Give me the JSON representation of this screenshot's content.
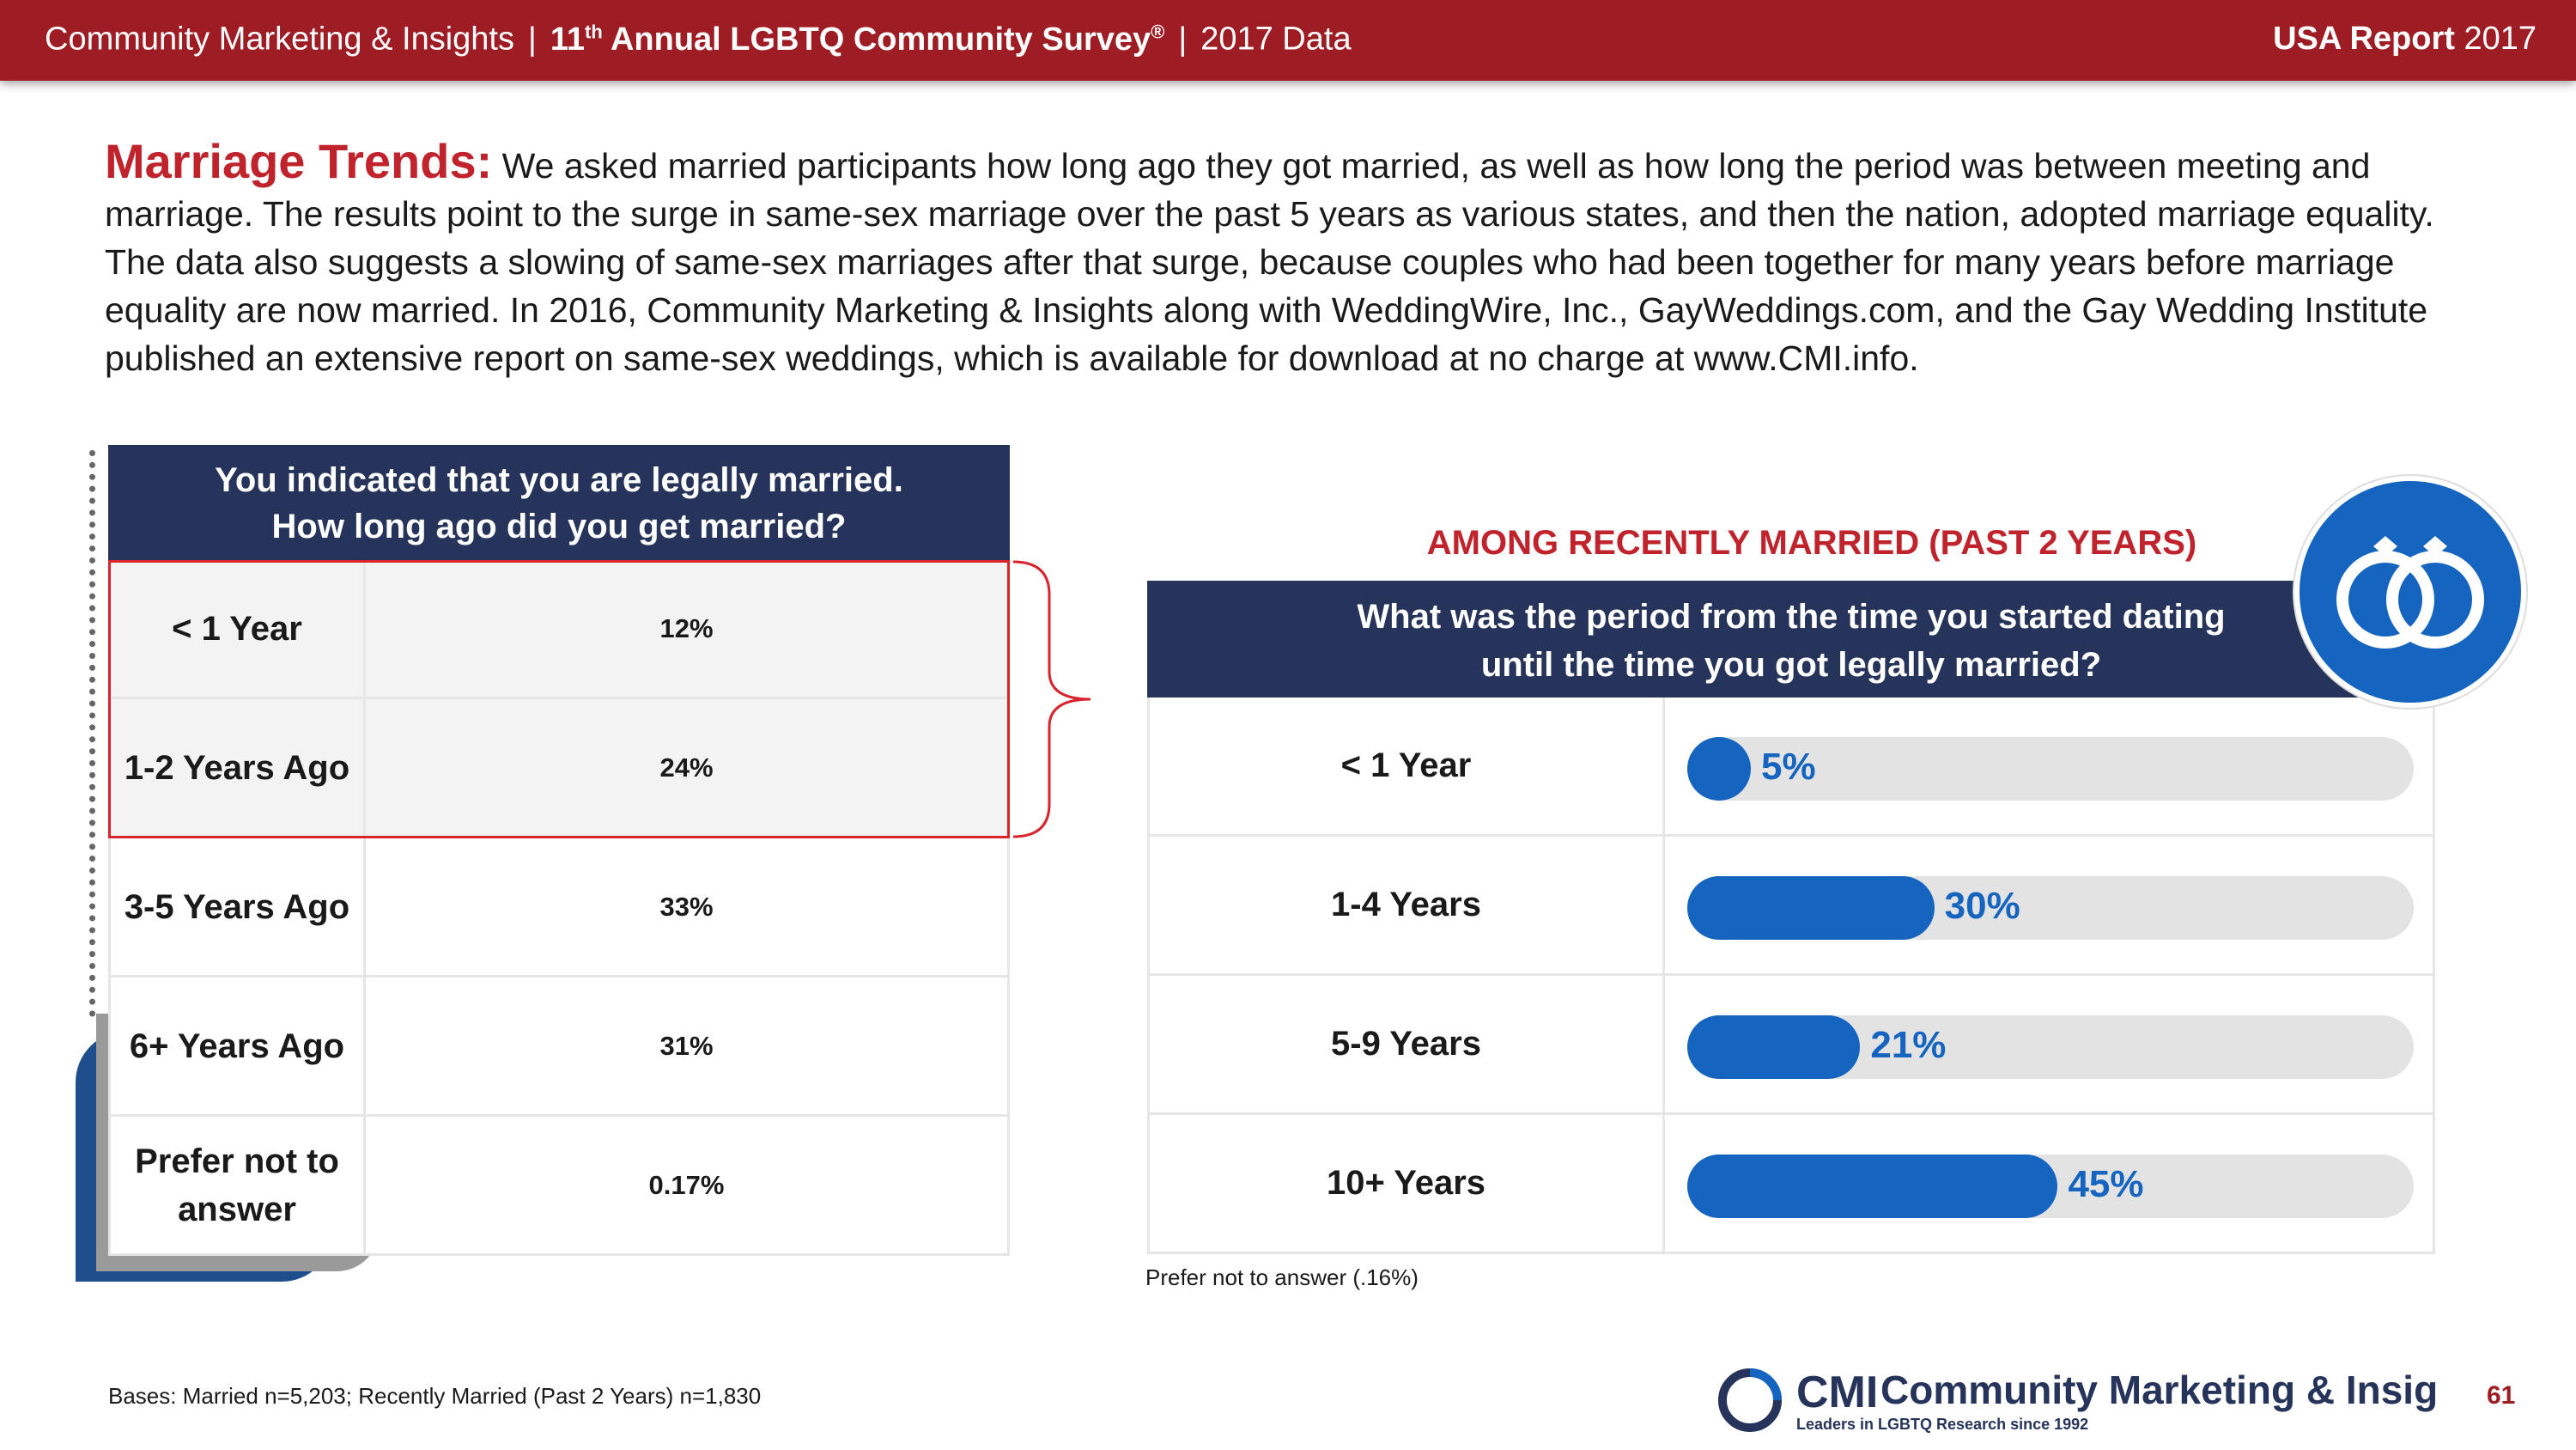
{
  "header": {
    "org": "Community Marketing & Insights",
    "survey_prefix": "11",
    "survey_sup": "th",
    "survey_name": "Annual LGBTQ Community Survey",
    "survey_reg": "®",
    "data_year": "2017 Data",
    "report_bold": "USA Report",
    "report_year": "2017"
  },
  "intro": {
    "lead": "Marriage Trends:",
    "text": "We asked married participants how long ago they got married, as well as how long the period was between meeting and marriage. The results point to the surge in same-sex marriage over the past 5 years as various states, and then the nation, adopted marriage equality. The data also suggests a slowing of same-sex marriages after that surge, because couples who had been together for many years before marriage equality are now married. In 2016, Community Marketing & Insights along with WeddingWire, Inc., GayWeddings.com, and the Gay Wedding Institute published an extensive report on same-sex weddings, which is available for download at no charge at www.CMI.info."
  },
  "left_table": {
    "header_line1": "You indicated that you are legally married.",
    "header_line2": "How long ago did you get married?",
    "rows": [
      {
        "label": "< 1 Year",
        "value": "12%"
      },
      {
        "label": "1-2 Years Ago",
        "value": "24%"
      },
      {
        "label": "3-5 Years Ago",
        "value": "33%"
      },
      {
        "label": "6+ Years Ago",
        "value": "31%"
      },
      {
        "label": "Prefer not to answer",
        "value": "0.17%"
      }
    ]
  },
  "right_section": {
    "among": "AMONG RECENTLY MARRIED (PAST 2 YEARS)",
    "header_line1": "What was the period from the time you started dating",
    "header_line2": "until the time you got legally married?",
    "prefer_note": "Prefer not to answer (.16%)",
    "accent": "#1565c0",
    "icon": "wedding-rings-icon"
  },
  "chart_data": {
    "type": "bar",
    "categories": [
      "< 1 Year",
      "1-4 Years",
      "5-9 Years",
      "10+ Years"
    ],
    "values": [
      5,
      30,
      21,
      45
    ],
    "labels": [
      "5%",
      "30%",
      "21%",
      "45%"
    ],
    "ylim": [
      0,
      100
    ]
  },
  "footer": {
    "bases": "Bases: Married n=5,203; Recently Married (Past 2 Years) n=1,830",
    "logo_abbr": "CMI",
    "logo_name": "Community Marketing & Insights",
    "logo_tagline": "Leaders in LGBTQ Research since 1992",
    "page_number": "61"
  },
  "colors": {
    "header_red": "#9e1c23",
    "navy": "#26335a",
    "highlight_red": "#d9232d",
    "bar_blue": "#1565c0",
    "track_gray": "#e3e3e3"
  }
}
